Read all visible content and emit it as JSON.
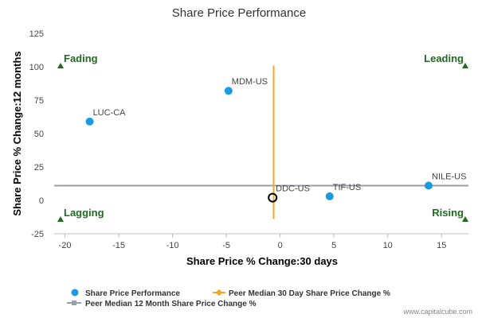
{
  "chart_data": {
    "type": "scatter",
    "title": "Share Price Performance",
    "xlabel": "Share Price % Change:30 days",
    "ylabel": "Share Price % Change:12 months",
    "xlim": [
      -21,
      17.5
    ],
    "ylim": [
      -25,
      125
    ],
    "xticks": [
      -20,
      -15,
      -10,
      -5,
      0,
      5,
      10,
      15
    ],
    "yticks": [
      -25,
      0,
      25,
      50,
      75,
      100,
      125
    ],
    "grid": false,
    "series": [
      {
        "name": "Share Price Performance",
        "color": "#1a9ae0",
        "points": [
          {
            "label": "LUC-CA",
            "x": -17.7,
            "y": 59
          },
          {
            "label": "MDM-US",
            "x": -4.8,
            "y": 82
          },
          {
            "label": "TIF-US",
            "x": 4.6,
            "y": 3
          },
          {
            "label": "NILE-US",
            "x": 13.8,
            "y": 11
          }
        ]
      }
    ],
    "subject": {
      "label": "DDC-US",
      "x": -0.7,
      "y": 2
    },
    "peer_median_30d": {
      "name": "Peer Median 30 Day Share Price Change %",
      "x": -0.6,
      "y_range": [
        -14,
        101
      ],
      "color": "#f5a623"
    },
    "peer_median_12m": {
      "name": "Peer Median 12 Month Share Price Change %",
      "y": 11,
      "color": "#9a9ea8"
    },
    "quadrants": [
      {
        "label": "Fading",
        "corner": "top-left"
      },
      {
        "label": "Leading",
        "corner": "top-right"
      },
      {
        "label": "Lagging",
        "corner": "bottom-left"
      },
      {
        "label": "Rising",
        "corner": "bottom-right"
      }
    ],
    "legend_position": "bottom",
    "quadrant_color": "#1f6b1f"
  },
  "credit": "www.capitalcube.com"
}
